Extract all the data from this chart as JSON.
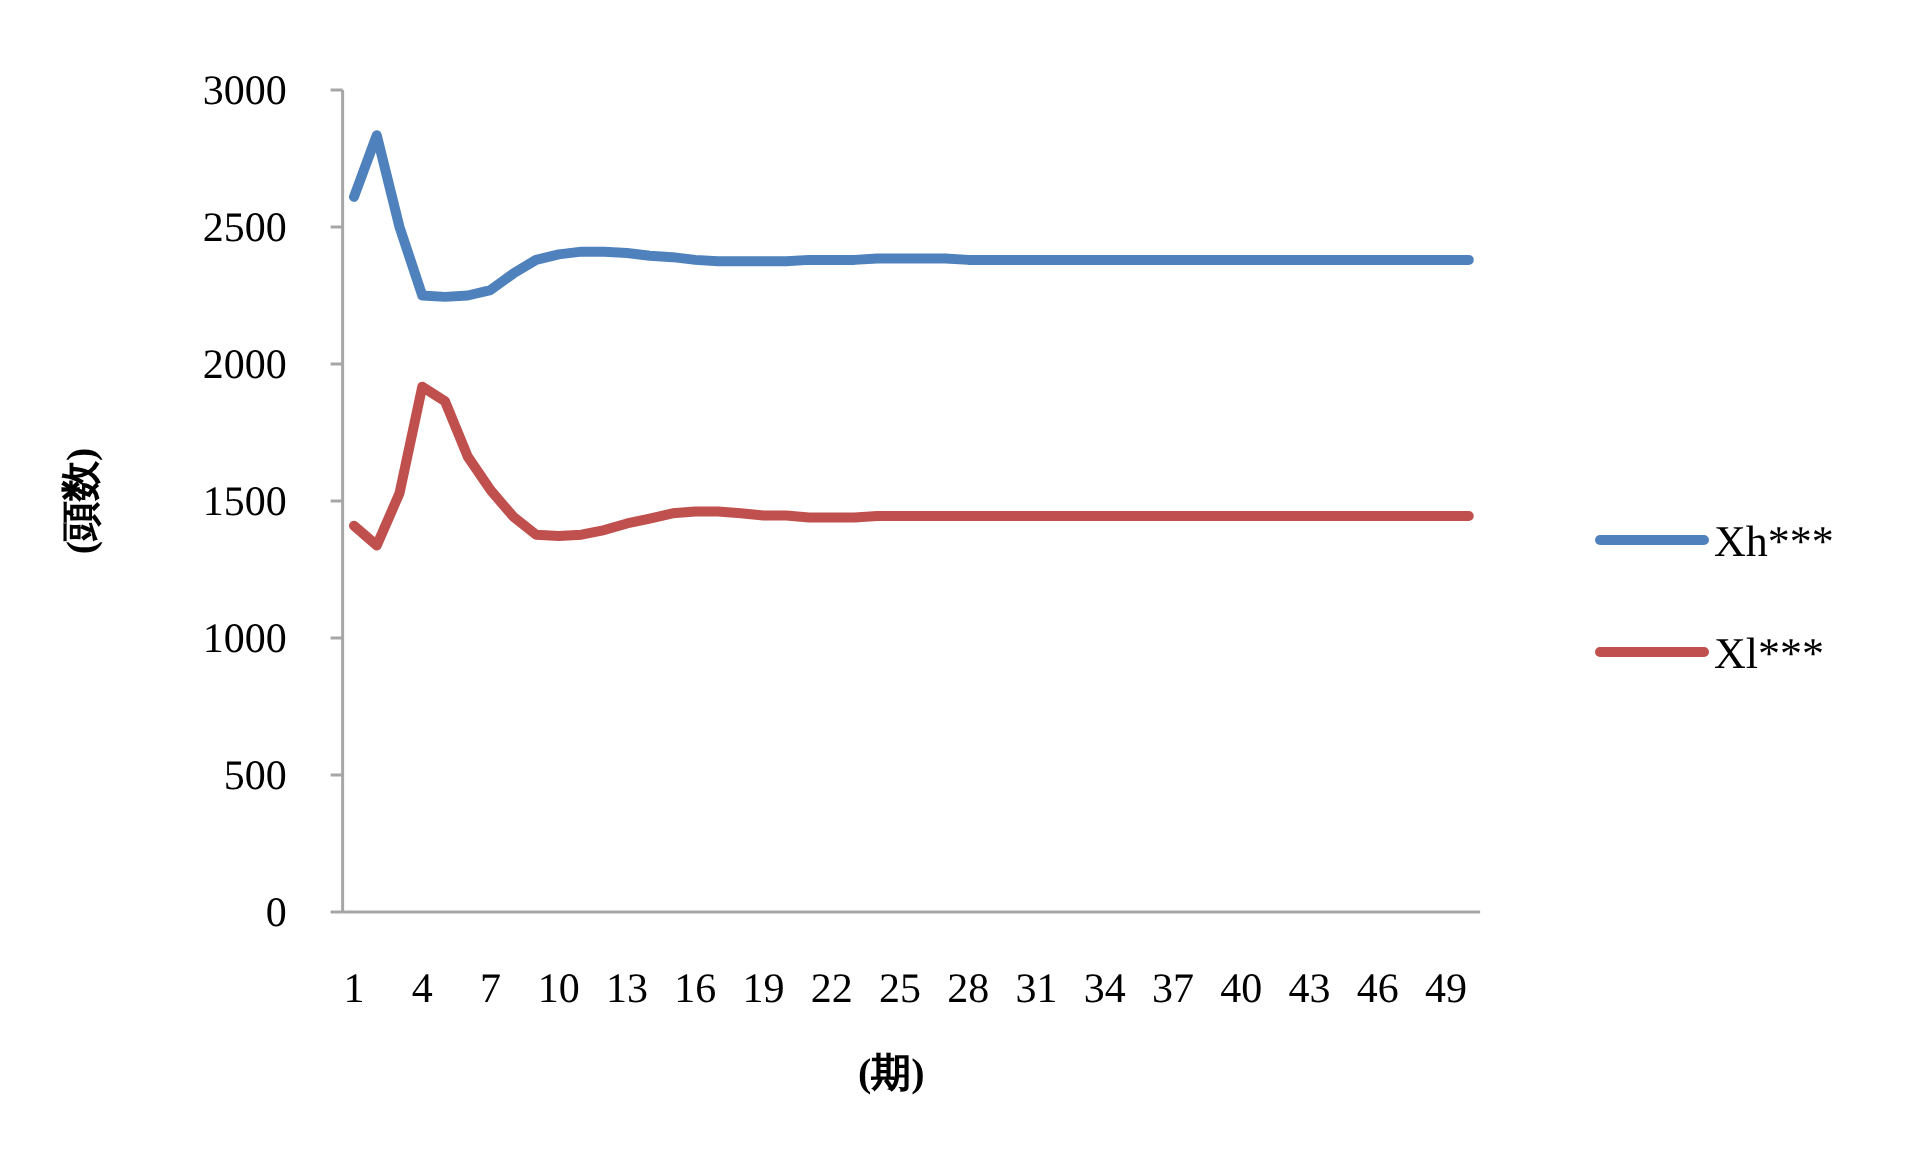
{
  "chart_data": {
    "type": "line",
    "xlabel": "(期)",
    "ylabel": "(頭数)",
    "categories": [
      "1",
      null,
      null,
      "4",
      null,
      null,
      "7",
      null,
      null,
      "10",
      null,
      null,
      "13",
      null,
      null,
      "16",
      null,
      null,
      "19",
      null,
      null,
      "22",
      null,
      null,
      "25",
      null,
      null,
      "28",
      null,
      null,
      "31",
      null,
      null,
      "34",
      null,
      null,
      "37",
      null,
      null,
      "40",
      null,
      null,
      "43",
      null,
      null,
      "46",
      null,
      null,
      "49",
      null
    ],
    "ylim": [
      0,
      3000
    ],
    "yticks": [
      0,
      500,
      1000,
      1500,
      2000,
      2500,
      3000
    ],
    "grid": false,
    "legend": "right",
    "marker": "none",
    "line_style": "solid",
    "series": [
      {
        "name": "Xh***",
        "color": "#4f81bd",
        "values": [
          2610,
          2835,
          2500,
          2250,
          2245,
          2250,
          2270,
          2330,
          2380,
          2400,
          2410,
          2410,
          2405,
          2395,
          2390,
          2380,
          2375,
          2375,
          2375,
          2375,
          2380,
          2380,
          2380,
          2385,
          2385,
          2385,
          2385,
          2380,
          2380,
          2380,
          2380,
          2380,
          2380,
          2380,
          2380,
          2380,
          2380,
          2380,
          2380,
          2380,
          2380,
          2380,
          2380,
          2380,
          2380,
          2380,
          2380,
          2380,
          2380,
          2380
        ]
      },
      {
        "name": "Xl***",
        "color": "#c0504d",
        "values": [
          1410,
          1338,
          1528,
          1917,
          1864,
          1662,
          1540,
          1443,
          1377,
          1372,
          1377,
          1394,
          1418,
          1436,
          1455,
          1462,
          1462,
          1455,
          1447,
          1447,
          1440,
          1440,
          1440,
          1445,
          1445,
          1445,
          1445,
          1445,
          1445,
          1445,
          1445,
          1445,
          1445,
          1445,
          1445,
          1445,
          1445,
          1445,
          1445,
          1445,
          1445,
          1445,
          1445,
          1445,
          1445,
          1445,
          1445,
          1445,
          1445,
          1445
        ]
      }
    ]
  }
}
